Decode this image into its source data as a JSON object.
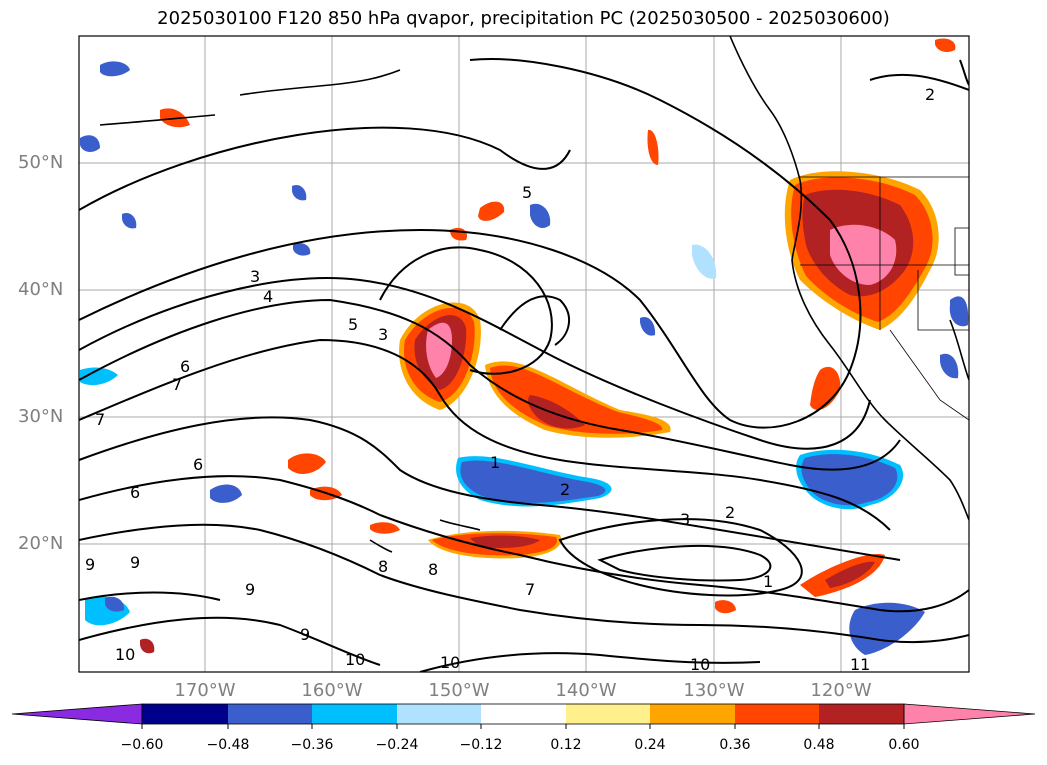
{
  "title": "2025030100 F120 850 hPa qvapor, precipitation PC (2025030500 - 2025030600)",
  "map": {
    "lat_labels": [
      {
        "text": "50°N",
        "lat": 50
      },
      {
        "text": "40°N",
        "lat": 40
      },
      {
        "text": "30°N",
        "lat": 30
      },
      {
        "text": "20°N",
        "lat": 20
      }
    ],
    "lon_labels": [
      {
        "text": "170°W",
        "lon": -170
      },
      {
        "text": "160°W",
        "lon": -160
      },
      {
        "text": "150°W",
        "lon": -150
      },
      {
        "text": "140°W",
        "lon": -140
      },
      {
        "text": "130°W",
        "lon": -130
      },
      {
        "text": "120°W",
        "lon": -120
      }
    ],
    "contour_labels": [
      "1",
      "1",
      "2",
      "2",
      "2",
      "3",
      "3",
      "3",
      "4",
      "5",
      "5",
      "6",
      "6",
      "6",
      "7",
      "7",
      "7",
      "8",
      "8",
      "9",
      "9",
      "9",
      "9",
      "10",
      "10",
      "10",
      "10",
      "11"
    ]
  },
  "colorbar": {
    "tick_labels": [
      "−0.60",
      "−0.48",
      "−0.36",
      "−0.24",
      "−0.12",
      "0.12",
      "0.24",
      "0.36",
      "0.48",
      "0.60"
    ],
    "colors": [
      "#8a2be2",
      "#00008b",
      "#3a5fcd",
      "#00bfff",
      "#b0e2ff",
      "#ffffff",
      "#fff08c",
      "#ffa500",
      "#ff4500",
      "#b22222",
      "#ff82ab"
    ]
  },
  "colors": {
    "negative_dark": "#00008b",
    "negative_mid": "#3a5fcd",
    "negative_cyan": "#00bfff",
    "positive_orange": "#ff4500",
    "positive_red": "#b22222",
    "positive_pink": "#ff82ab",
    "grid": "#aaaaaa",
    "label_gray": "#808080"
  }
}
